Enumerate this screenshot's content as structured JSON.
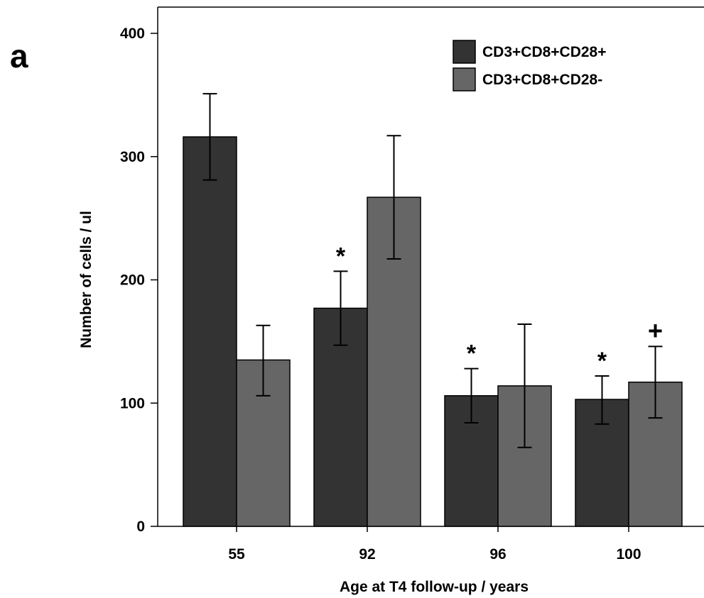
{
  "panel_label": "a",
  "chart_data": {
    "type": "bar",
    "title": "",
    "xlabel": "Age at T4 follow-up / years",
    "ylabel": "Number of cells / ul",
    "categories": [
      "55",
      "92",
      "96",
      "100"
    ],
    "ylim": [
      0,
      400
    ],
    "yticks": [
      0,
      100,
      200,
      300,
      400
    ],
    "grid": false,
    "legend_position": "top-right",
    "series": [
      {
        "name": "CD3+CD8+CD28+",
        "color": "#333333",
        "values": [
          316,
          177,
          106,
          103
        ],
        "error_low": [
          281,
          147,
          84,
          83
        ],
        "error_high": [
          351,
          207,
          128,
          122
        ],
        "annotations": [
          "",
          "*",
          "*",
          "*"
        ]
      },
      {
        "name": "CD3+CD8+CD28-",
        "color": "#666666",
        "values": [
          135,
          267,
          114,
          117
        ],
        "error_low": [
          106,
          217,
          64,
          88
        ],
        "error_high": [
          163,
          317,
          164,
          146
        ],
        "annotations": [
          "",
          "",
          "",
          "+"
        ]
      }
    ]
  }
}
